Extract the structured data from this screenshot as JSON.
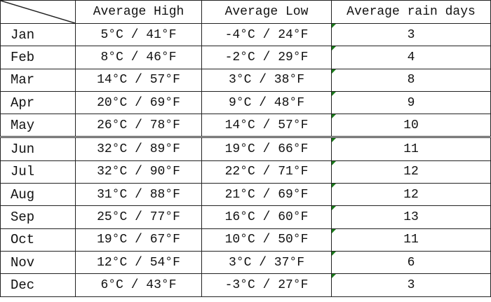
{
  "table": {
    "header": [
      "Average High",
      "Average Low",
      "Average rain days"
    ],
    "rows": [
      [
        "Jan",
        "5°C / 41°F",
        "-4°C / 24°F",
        3
      ],
      [
        "Feb",
        "8°C / 46°F",
        "-2°C / 29°F",
        4
      ],
      [
        "Mar",
        "14°C / 57°F",
        "3°C / 38°F",
        8
      ],
      [
        "Apr",
        "20°C / 69°F",
        "9°C / 48°F",
        9
      ],
      [
        "May",
        "26°C / 78°F",
        "14°C / 57°F",
        10
      ],
      [
        "Jun",
        "32°C / 89°F",
        "19°C / 66°F",
        11
      ],
      [
        "Jul",
        "32°C / 90°F",
        "22°C / 71°F",
        12
      ],
      [
        "Aug",
        "31°C / 88°F",
        "21°C / 69°F",
        12
      ],
      [
        "Sep",
        "25°C / 77°F",
        "16°C / 60°F",
        13
      ],
      [
        "Oct",
        "19°C / 67°F",
        "10°C / 50°F",
        11
      ],
      [
        "Nov",
        "12°C / 54°F",
        "3°C / 37°F",
        6
      ],
      [
        "Dec",
        "6°C / 43°F",
        "-3°C / 27°F",
        3
      ]
    ]
  }
}
